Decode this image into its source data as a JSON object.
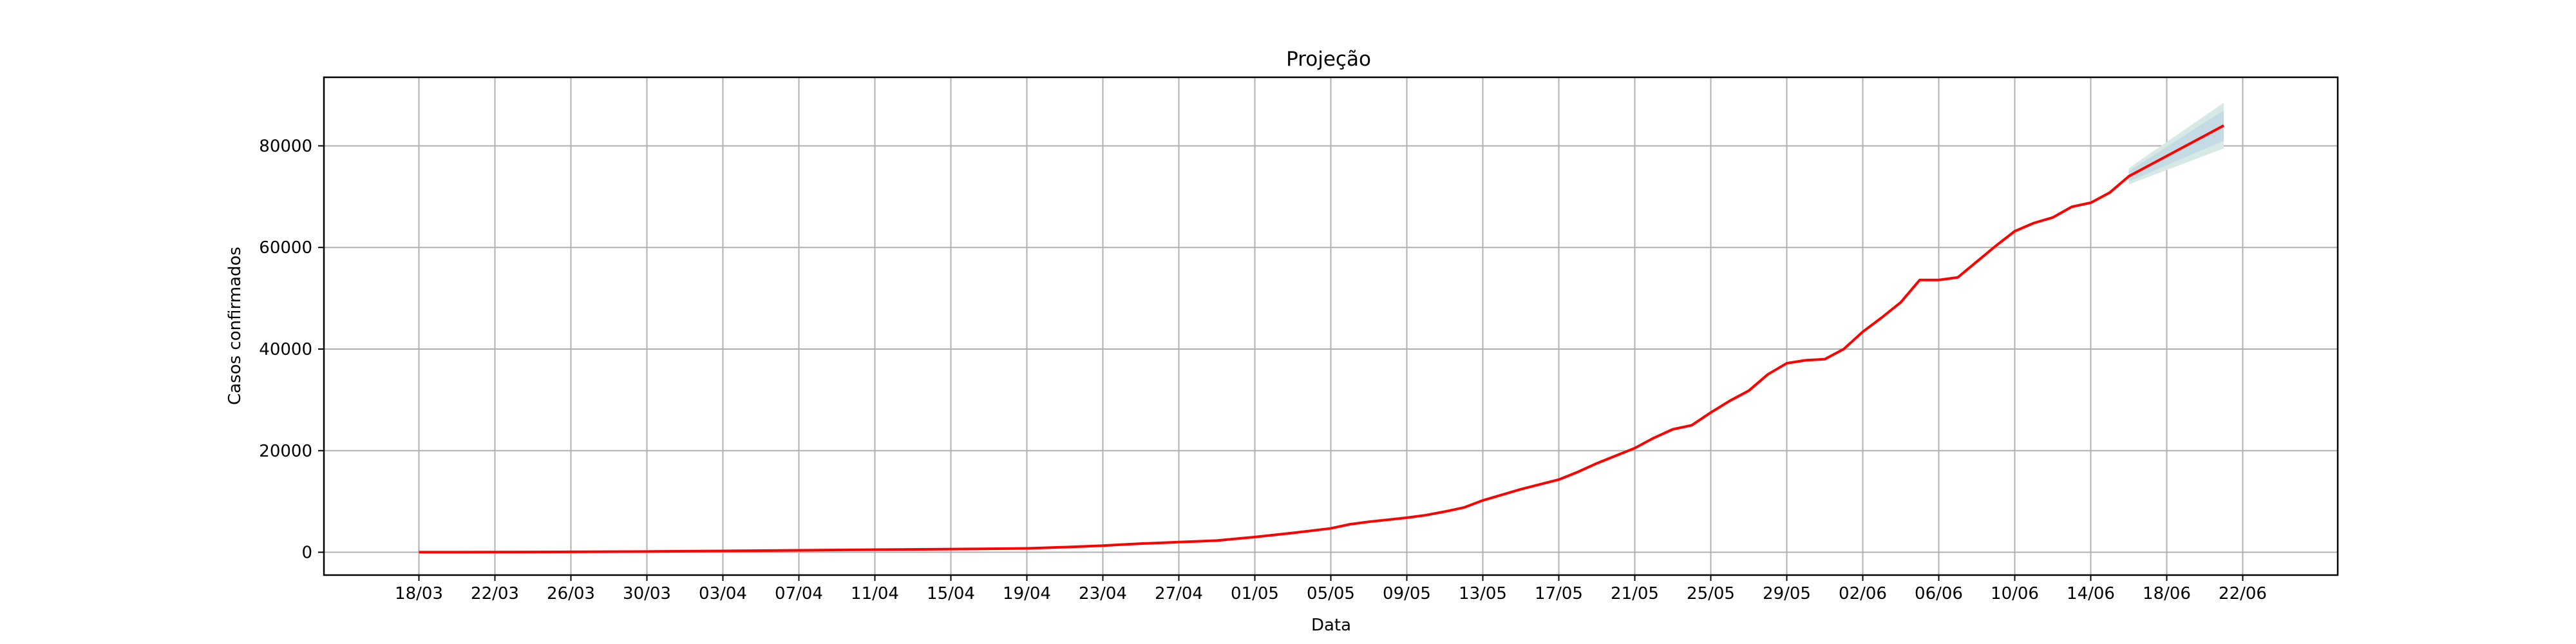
{
  "chart_data": {
    "type": "line",
    "title": "Projeção",
    "xlabel": "Data",
    "ylabel": "Casos confirmados",
    "grid": true,
    "colors": {
      "line": "#ff0000",
      "band_outer": "#d6e9e4",
      "band_inner": "#c5dbe4",
      "grid": "#b0b0b0"
    },
    "x_ticks": [
      "18/03",
      "22/03",
      "26/03",
      "30/03",
      "03/04",
      "07/04",
      "11/04",
      "15/04",
      "19/04",
      "23/04",
      "27/04",
      "01/05",
      "05/05",
      "09/05",
      "13/05",
      "17/05",
      "21/05",
      "25/05",
      "29/05",
      "02/06",
      "06/06",
      "10/06",
      "14/06",
      "18/06",
      "22/06"
    ],
    "y_ticks": [
      0,
      20000,
      40000,
      60000,
      80000
    ],
    "ylim": [
      -4500,
      93500
    ],
    "xlim": [
      "13/03",
      "27/06"
    ],
    "series": [
      {
        "values": [
          [
            "18/03",
            10
          ],
          [
            "20/03",
            20
          ],
          [
            "22/03",
            35
          ],
          [
            "24/03",
            55
          ],
          [
            "26/03",
            80
          ],
          [
            "28/03",
            110
          ],
          [
            "30/03",
            150
          ],
          [
            "01/04",
            200
          ],
          [
            "03/04",
            260
          ],
          [
            "05/04",
            320
          ],
          [
            "07/04",
            380
          ],
          [
            "09/04",
            440
          ],
          [
            "11/04",
            500
          ],
          [
            "13/04",
            560
          ],
          [
            "15/04",
            620
          ],
          [
            "17/04",
            680
          ],
          [
            "19/04",
            760
          ],
          [
            "21/04",
            1000
          ],
          [
            "23/04",
            1300
          ],
          [
            "24/04",
            1500
          ],
          [
            "25/04",
            1700
          ],
          [
            "27/04",
            2000
          ],
          [
            "29/04",
            2300
          ],
          [
            "01/05",
            3000
          ],
          [
            "03/05",
            3800
          ],
          [
            "05/05",
            4700
          ],
          [
            "06/05",
            5500
          ],
          [
            "07/05",
            6000
          ],
          [
            "09/05",
            6800
          ],
          [
            "10/05",
            7300
          ],
          [
            "11/05",
            8000
          ],
          [
            "12/05",
            8800
          ],
          [
            "13/05",
            10200
          ],
          [
            "15/05",
            12400
          ],
          [
            "17/05",
            14300
          ],
          [
            "18/05",
            15800
          ],
          [
            "19/05",
            17500
          ],
          [
            "20/05",
            19000
          ],
          [
            "21/05",
            20500
          ],
          [
            "22/05",
            22500
          ],
          [
            "23/05",
            24200
          ],
          [
            "24/05",
            25000
          ],
          [
            "25/05",
            27500
          ],
          [
            "26/05",
            29800
          ],
          [
            "27/05",
            31800
          ],
          [
            "28/05",
            35000
          ],
          [
            "29/05",
            37200
          ],
          [
            "30/05",
            37800
          ],
          [
            "31/05",
            38000
          ],
          [
            "01/06",
            40000
          ],
          [
            "02/06",
            43400
          ],
          [
            "03/06",
            46200
          ],
          [
            "04/06",
            49200
          ],
          [
            "05/06",
            53600
          ],
          [
            "06/06",
            53600
          ],
          [
            "07/06",
            54100
          ],
          [
            "08/06",
            57200
          ],
          [
            "09/06",
            60300
          ],
          [
            "10/06",
            63200
          ],
          [
            "11/06",
            64800
          ],
          [
            "12/06",
            65900
          ],
          [
            "13/06",
            68000
          ],
          [
            "14/06",
            68800
          ],
          [
            "15/06",
            70800
          ],
          [
            "16/06",
            74000
          ],
          [
            "17/06",
            76000
          ],
          [
            "18/06",
            78000
          ],
          [
            "19/06",
            80000
          ],
          [
            "20/06",
            82000
          ],
          [
            "21/06",
            84000
          ]
        ]
      }
    ],
    "projection_band": {
      "outer": {
        "dates": [
          "16/06",
          "21/06"
        ],
        "lower": [
          72400,
          79500
        ],
        "upper": [
          75600,
          88500
        ]
      },
      "inner": {
        "dates": [
          "16/06",
          "21/06"
        ],
        "lower": [
          73000,
          81000
        ],
        "upper": [
          75000,
          87000
        ]
      }
    }
  }
}
